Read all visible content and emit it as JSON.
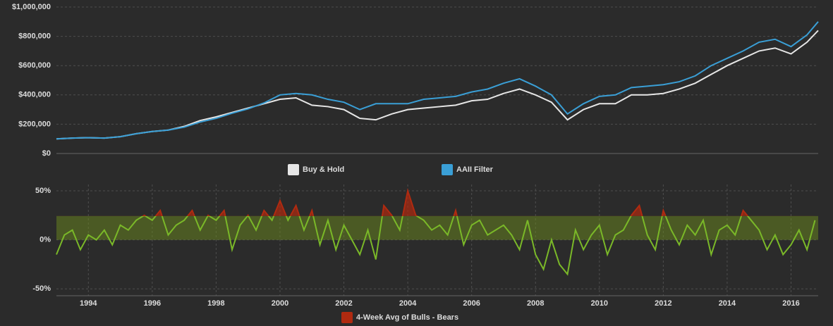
{
  "chart_data": [
    {
      "type": "line",
      "x": [
        1993,
        1993.5,
        1994,
        1994.5,
        1995,
        1995.5,
        1996,
        1996.5,
        1997,
        1997.5,
        1998,
        1998.5,
        1999,
        1999.5,
        2000,
        2000.5,
        2001,
        2001.5,
        2002,
        2002.5,
        2003,
        2003.5,
        2004,
        2004.5,
        2005,
        2005.5,
        2006,
        2006.5,
        2007,
        2007.5,
        2008,
        2008.5,
        2009,
        2009.5,
        2010,
        2010.5,
        2011,
        2011.5,
        2012,
        2012.5,
        2013,
        2013.5,
        2014,
        2014.5,
        2015,
        2015.5,
        2016,
        2016.5,
        2016.85
      ],
      "series": [
        {
          "name": "Buy & Hold",
          "color": "#e6e6e6",
          "values": [
            100000,
            105000,
            108000,
            105000,
            115000,
            135000,
            150000,
            160000,
            185000,
            225000,
            250000,
            280000,
            310000,
            340000,
            370000,
            380000,
            330000,
            320000,
            300000,
            240000,
            230000,
            270000,
            300000,
            310000,
            320000,
            330000,
            360000,
            370000,
            410000,
            440000,
            400000,
            350000,
            230000,
            300000,
            340000,
            340000,
            400000,
            400000,
            410000,
            440000,
            480000,
            540000,
            600000,
            650000,
            700000,
            720000,
            680000,
            760000,
            840000
          ]
        },
        {
          "name": "AAII Filter",
          "color": "#3a9fd6",
          "values": [
            100000,
            105000,
            108000,
            105000,
            115000,
            135000,
            150000,
            160000,
            180000,
            215000,
            240000,
            275000,
            305000,
            345000,
            400000,
            410000,
            400000,
            370000,
            350000,
            300000,
            340000,
            340000,
            340000,
            370000,
            380000,
            390000,
            420000,
            440000,
            480000,
            510000,
            460000,
            400000,
            270000,
            340000,
            390000,
            400000,
            450000,
            460000,
            470000,
            490000,
            530000,
            600000,
            650000,
            700000,
            760000,
            780000,
            730000,
            810000,
            900000
          ]
        }
      ],
      "xlim": [
        1993,
        2016.85
      ],
      "ylim": [
        0,
        1000000
      ],
      "yticks": [
        {
          "value": 0,
          "label": "$0"
        },
        {
          "value": 200000,
          "label": "$200,000"
        },
        {
          "value": 400000,
          "label": "$400,000"
        },
        {
          "value": 600000,
          "label": "$600,000"
        },
        {
          "value": 800000,
          "label": "$800,000"
        },
        {
          "value": 1000000,
          "label": "$1,000,000"
        }
      ],
      "grid": true
    },
    {
      "type": "line",
      "x": [
        1993,
        1993.25,
        1993.5,
        1993.75,
        1994,
        1994.25,
        1994.5,
        1994.75,
        1995,
        1995.25,
        1995.5,
        1995.75,
        1996,
        1996.25,
        1996.5,
        1996.75,
        1997,
        1997.25,
        1997.5,
        1997.75,
        1998,
        1998.25,
        1998.5,
        1998.75,
        1999,
        1999.25,
        1999.5,
        1999.75,
        2000,
        2000.25,
        2000.5,
        2000.75,
        2001,
        2001.25,
        2001.5,
        2001.75,
        2002,
        2002.25,
        2002.5,
        2002.75,
        2003,
        2003.25,
        2003.5,
        2003.75,
        2004,
        2004.25,
        2004.5,
        2004.75,
        2005,
        2005.25,
        2005.5,
        2005.75,
        2006,
        2006.25,
        2006.5,
        2006.75,
        2007,
        2007.25,
        2007.5,
        2007.75,
        2008,
        2008.25,
        2008.5,
        2008.75,
        2009,
        2009.25,
        2009.5,
        2009.75,
        2010,
        2010.25,
        2010.5,
        2010.75,
        2011,
        2011.25,
        2011.5,
        2011.75,
        2012,
        2012.25,
        2012.5,
        2012.75,
        2013,
        2013.25,
        2013.5,
        2013.75,
        2014,
        2014.25,
        2014.5,
        2014.75,
        2015,
        2015.25,
        2015.5,
        2015.75,
        2016,
        2016.25,
        2016.5,
        2016.75
      ],
      "series": [
        {
          "name": "4-Week Avg of Bulls - Bears",
          "color": "#7ab828",
          "above_color": "#b02a10",
          "values": [
            -15,
            5,
            10,
            -10,
            5,
            0,
            10,
            -5,
            15,
            10,
            20,
            25,
            20,
            30,
            5,
            15,
            20,
            30,
            10,
            25,
            20,
            30,
            -10,
            15,
            25,
            10,
            30,
            20,
            40,
            20,
            35,
            10,
            30,
            -5,
            20,
            -10,
            15,
            0,
            -15,
            10,
            -20,
            35,
            25,
            10,
            50,
            25,
            20,
            10,
            15,
            5,
            30,
            -5,
            15,
            20,
            5,
            10,
            15,
            5,
            -10,
            20,
            -15,
            -30,
            0,
            -25,
            -35,
            10,
            -10,
            5,
            15,
            -15,
            5,
            10,
            25,
            35,
            5,
            -10,
            30,
            10,
            -5,
            15,
            5,
            20,
            -15,
            10,
            15,
            5,
            30,
            20,
            10,
            -10,
            5,
            -15,
            -5,
            10,
            -10,
            20
          ]
        }
      ],
      "threshold": 24.3,
      "xlim": [
        1993,
        2016.85
      ],
      "ylim": [
        -57,
        56.5
      ],
      "yticks": [
        {
          "value": -50,
          "label": "-50%"
        },
        {
          "value": 0,
          "label": "0%"
        },
        {
          "value": 50,
          "label": "50%"
        }
      ],
      "xticks": [
        1994,
        1996,
        1998,
        2000,
        2002,
        2004,
        2006,
        2008,
        2010,
        2012,
        2014,
        2016
      ],
      "grid": true
    }
  ]
}
